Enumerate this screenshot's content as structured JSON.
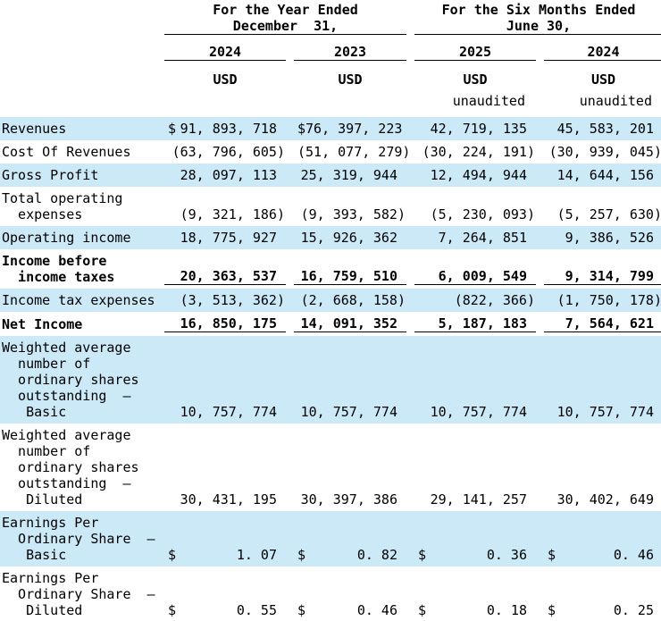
{
  "colors": {
    "row_shade": "#cce9f8",
    "rule": "#000000",
    "text": "#000000"
  },
  "header": {
    "groups": [
      {
        "title": "For the Year Ended\nDecember  31,"
      },
      {
        "title": "For the Six Months Ended\nJune 30,"
      }
    ],
    "columns": [
      {
        "year": "2024",
        "currency": "USD",
        "note": ""
      },
      {
        "year": "2023",
        "currency": "USD",
        "note": ""
      },
      {
        "year": "2025",
        "currency": "USD",
        "note": "unaudited"
      },
      {
        "year": "2024",
        "currency": "USD",
        "note": "unaudited"
      }
    ]
  },
  "rows": [
    {
      "label": "Revenues",
      "bold": false,
      "shaded": true,
      "underline": false,
      "cells": [
        {
          "d": "$",
          "v": "91, 893, 718"
        },
        {
          "d": "$",
          "v": "76, 397, 223"
        },
        {
          "d": "",
          "v": "42, 719, 135"
        },
        {
          "d": "",
          "v": "45, 583, 201"
        }
      ]
    },
    {
      "label": "Cost Of Revenues",
      "bold": false,
      "shaded": false,
      "underline": false,
      "cells": [
        {
          "d": "",
          "v": "(63, 796, 605)"
        },
        {
          "d": "",
          "v": "(51, 077, 279)"
        },
        {
          "d": "",
          "v": "(30, 224, 191)"
        },
        {
          "d": "",
          "v": "(30, 939, 045)"
        }
      ]
    },
    {
      "label": "Gross Profit",
      "bold": false,
      "shaded": true,
      "underline": false,
      "cells": [
        {
          "d": "",
          "v": "28, 097, 113"
        },
        {
          "d": "",
          "v": "25, 319, 944"
        },
        {
          "d": "",
          "v": "12, 494, 944"
        },
        {
          "d": "",
          "v": "14, 644, 156"
        }
      ]
    },
    {
      "label": "Total operating\n  expenses",
      "bold": false,
      "shaded": false,
      "underline": false,
      "cells": [
        {
          "d": "",
          "v": "(9, 321, 186)"
        },
        {
          "d": "",
          "v": "(9, 393, 582)"
        },
        {
          "d": "",
          "v": "(5, 230, 093)"
        },
        {
          "d": "",
          "v": "(5, 257, 630)"
        }
      ]
    },
    {
      "label": "Operating income",
      "bold": false,
      "shaded": true,
      "underline": false,
      "cells": [
        {
          "d": "",
          "v": "18, 775, 927"
        },
        {
          "d": "",
          "v": "15, 926, 362"
        },
        {
          "d": "",
          "v": "7, 264, 851"
        },
        {
          "d": "",
          "v": "9, 386, 526"
        }
      ]
    },
    {
      "label": "Income before\n  income taxes",
      "bold": true,
      "shaded": false,
      "underline": true,
      "cells": [
        {
          "d": "",
          "v": "20, 363, 537"
        },
        {
          "d": "",
          "v": "16, 759, 510"
        },
        {
          "d": "",
          "v": "6, 009, 549"
        },
        {
          "d": "",
          "v": "9, 314, 799"
        }
      ]
    },
    {
      "label": "Income tax expenses",
      "bold": false,
      "shaded": true,
      "underline": false,
      "cells": [
        {
          "d": "",
          "v": "(3, 513, 362)"
        },
        {
          "d": "",
          "v": "(2, 668, 158)"
        },
        {
          "d": "",
          "v": "(822, 366)"
        },
        {
          "d": "",
          "v": "(1, 750, 178)"
        }
      ]
    },
    {
      "label": "Net Income",
      "bold": true,
      "shaded": false,
      "underline": true,
      "cells": [
        {
          "d": "",
          "v": "16, 850, 175"
        },
        {
          "d": "",
          "v": "14, 091, 352"
        },
        {
          "d": "",
          "v": "5, 187, 183"
        },
        {
          "d": "",
          "v": "7, 564, 621"
        }
      ]
    },
    {
      "label": "Weighted average\n  number of\n  ordinary shares\n  outstanding  –\n   Basic",
      "bold": false,
      "shaded": true,
      "underline": false,
      "cells": [
        {
          "d": "",
          "v": "10, 757, 774"
        },
        {
          "d": "",
          "v": "10, 757, 774"
        },
        {
          "d": "",
          "v": "10, 757, 774"
        },
        {
          "d": "",
          "v": "10, 757, 774"
        }
      ]
    },
    {
      "label": "Weighted average\n  number of\n  ordinary shares\n  outstanding  –\n   Diluted",
      "bold": false,
      "shaded": false,
      "underline": false,
      "cells": [
        {
          "d": "",
          "v": "30, 431, 195"
        },
        {
          "d": "",
          "v": "30, 397, 386"
        },
        {
          "d": "",
          "v": "29, 141, 257"
        },
        {
          "d": "",
          "v": "30, 402, 649"
        }
      ]
    },
    {
      "label": "Earnings Per\n  Ordinary Share  –\n   Basic",
      "bold": false,
      "shaded": true,
      "underline": false,
      "cells": [
        {
          "d": "$",
          "v": "1. 07"
        },
        {
          "d": "$",
          "v": "0. 82"
        },
        {
          "d": "$",
          "v": "0. 36"
        },
        {
          "d": "$",
          "v": "0. 46"
        }
      ]
    },
    {
      "label": "Earnings Per\n  Ordinary Share  –\n   Diluted",
      "bold": false,
      "shaded": false,
      "underline": false,
      "cells": [
        {
          "d": "$",
          "v": "0. 55"
        },
        {
          "d": "$",
          "v": "0. 46"
        },
        {
          "d": "$",
          "v": "0. 18"
        },
        {
          "d": "$",
          "v": "0. 25"
        }
      ]
    }
  ]
}
